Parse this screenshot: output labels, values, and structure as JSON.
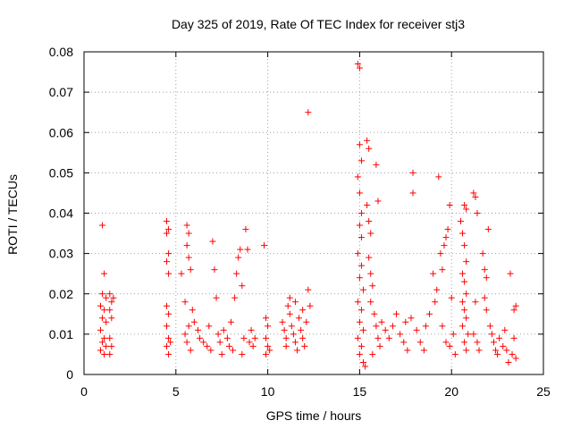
{
  "chart_data": {
    "type": "scatter",
    "title": "Day 325 of 2019, Rate Of TEC Index for receiver stj3",
    "xlabel": "GPS time / hours",
    "ylabel": "ROTI / TECUs",
    "xlim": [
      0,
      25
    ],
    "ylim": [
      0,
      0.08
    ],
    "grid": true,
    "marker": "plus",
    "color": "#ff0000",
    "x_ticks": [
      "0",
      "5",
      "10",
      "15",
      "20",
      "25"
    ],
    "y_ticks": [
      "0",
      "0.01",
      "0.02",
      "0.03",
      "0.04",
      "0.05",
      "0.06",
      "0.07",
      "0.08"
    ],
    "series": [
      {
        "name": "ROTI",
        "points": [
          [
            1.0,
            0.037
          ],
          [
            1.1,
            0.025
          ],
          [
            1.0,
            0.02
          ],
          [
            1.2,
            0.019
          ],
          [
            0.9,
            0.017
          ],
          [
            1.1,
            0.016
          ],
          [
            1.0,
            0.014
          ],
          [
            1.2,
            0.013
          ],
          [
            0.9,
            0.011
          ],
          [
            1.1,
            0.009
          ],
          [
            1.0,
            0.008
          ],
          [
            1.2,
            0.007
          ],
          [
            0.9,
            0.006
          ],
          [
            1.1,
            0.005
          ],
          [
            1.4,
            0.02
          ],
          [
            1.5,
            0.018
          ],
          [
            1.4,
            0.016
          ],
          [
            1.5,
            0.014
          ],
          [
            1.4,
            0.009
          ],
          [
            1.5,
            0.007
          ],
          [
            1.4,
            0.005
          ],
          [
            1.6,
            0.019
          ],
          [
            4.5,
            0.038
          ],
          [
            4.6,
            0.036
          ],
          [
            4.5,
            0.035
          ],
          [
            4.6,
            0.03
          ],
          [
            4.5,
            0.028
          ],
          [
            4.6,
            0.025
          ],
          [
            4.5,
            0.017
          ],
          [
            4.6,
            0.015
          ],
          [
            4.5,
            0.012
          ],
          [
            4.6,
            0.009
          ],
          [
            4.5,
            0.007
          ],
          [
            4.6,
            0.005
          ],
          [
            4.7,
            0.008
          ],
          [
            5.3,
            0.025
          ],
          [
            5.5,
            0.018
          ],
          [
            5.6,
            0.037
          ],
          [
            5.7,
            0.035
          ],
          [
            5.6,
            0.032
          ],
          [
            5.7,
            0.029
          ],
          [
            5.8,
            0.026
          ],
          [
            5.7,
            0.012
          ],
          [
            5.9,
            0.016
          ],
          [
            5.5,
            0.01
          ],
          [
            5.6,
            0.008
          ],
          [
            5.8,
            0.006
          ],
          [
            6.0,
            0.013
          ],
          [
            6.2,
            0.011
          ],
          [
            6.3,
            0.009
          ],
          [
            6.5,
            0.008
          ],
          [
            6.7,
            0.007
          ],
          [
            6.8,
            0.012
          ],
          [
            7.0,
            0.033
          ],
          [
            7.1,
            0.026
          ],
          [
            7.2,
            0.019
          ],
          [
            7.3,
            0.01
          ],
          [
            7.4,
            0.008
          ],
          [
            7.6,
            0.011
          ],
          [
            7.8,
            0.009
          ],
          [
            7.9,
            0.007
          ],
          [
            8.0,
            0.013
          ],
          [
            8.2,
            0.019
          ],
          [
            8.3,
            0.025
          ],
          [
            8.4,
            0.029
          ],
          [
            8.5,
            0.031
          ],
          [
            8.6,
            0.022
          ],
          [
            8.7,
            0.009
          ],
          [
            8.8,
            0.036
          ],
          [
            8.9,
            0.031
          ],
          [
            9.0,
            0.008
          ],
          [
            9.1,
            0.011
          ],
          [
            9.2,
            0.007
          ],
          [
            6.9,
            0.006
          ],
          [
            7.5,
            0.005
          ],
          [
            8.1,
            0.006
          ],
          [
            8.6,
            0.005
          ],
          [
            9.3,
            0.009
          ],
          [
            9.8,
            0.032
          ],
          [
            9.9,
            0.014
          ],
          [
            10.0,
            0.012
          ],
          [
            9.9,
            0.009
          ],
          [
            10.0,
            0.007
          ],
          [
            9.9,
            0.005
          ],
          [
            10.1,
            0.006
          ],
          [
            10.8,
            0.013
          ],
          [
            10.9,
            0.011
          ],
          [
            11.0,
            0.009
          ],
          [
            11.1,
            0.017
          ],
          [
            11.2,
            0.015
          ],
          [
            11.0,
            0.007
          ],
          [
            11.3,
            0.012
          ],
          [
            11.4,
            0.01
          ],
          [
            11.5,
            0.008
          ],
          [
            11.6,
            0.006
          ],
          [
            11.7,
            0.014
          ],
          [
            11.8,
            0.011
          ],
          [
            11.9,
            0.009
          ],
          [
            12.0,
            0.007
          ],
          [
            12.1,
            0.013
          ],
          [
            12.2,
            0.021
          ],
          [
            12.3,
            0.017
          ],
          [
            11.2,
            0.019
          ],
          [
            11.5,
            0.018
          ],
          [
            11.9,
            0.016
          ],
          [
            12.2,
            0.065
          ],
          [
            14.9,
            0.077
          ],
          [
            15.0,
            0.076
          ],
          [
            15.0,
            0.057
          ],
          [
            15.1,
            0.053
          ],
          [
            14.9,
            0.049
          ],
          [
            15.0,
            0.045
          ],
          [
            15.1,
            0.04
          ],
          [
            15.0,
            0.037
          ],
          [
            15.1,
            0.034
          ],
          [
            14.9,
            0.03
          ],
          [
            15.1,
            0.027
          ],
          [
            15.0,
            0.024
          ],
          [
            15.2,
            0.021
          ],
          [
            14.9,
            0.018
          ],
          [
            15.1,
            0.016
          ],
          [
            15.0,
            0.013
          ],
          [
            15.2,
            0.011
          ],
          [
            14.9,
            0.009
          ],
          [
            15.1,
            0.007
          ],
          [
            15.0,
            0.005
          ],
          [
            15.2,
            0.003
          ],
          [
            15.3,
            0.002
          ],
          [
            15.4,
            0.058
          ],
          [
            15.5,
            0.056
          ],
          [
            15.4,
            0.042
          ],
          [
            15.5,
            0.038
          ],
          [
            15.6,
            0.035
          ],
          [
            15.5,
            0.029
          ],
          [
            15.6,
            0.025
          ],
          [
            15.7,
            0.022
          ],
          [
            15.6,
            0.018
          ],
          [
            15.8,
            0.015
          ],
          [
            15.9,
            0.052
          ],
          [
            16.0,
            0.043
          ],
          [
            15.9,
            0.012
          ],
          [
            16.0,
            0.009
          ],
          [
            16.1,
            0.007
          ],
          [
            15.7,
            0.005
          ],
          [
            16.2,
            0.013
          ],
          [
            16.4,
            0.011
          ],
          [
            16.6,
            0.009
          ],
          [
            16.8,
            0.012
          ],
          [
            17.0,
            0.015
          ],
          [
            17.2,
            0.01
          ],
          [
            17.4,
            0.008
          ],
          [
            17.6,
            0.006
          ],
          [
            17.8,
            0.014
          ],
          [
            17.9,
            0.05
          ],
          [
            17.9,
            0.045
          ],
          [
            18.1,
            0.011
          ],
          [
            18.3,
            0.008
          ],
          [
            18.5,
            0.006
          ],
          [
            17.5,
            0.013
          ],
          [
            18.6,
            0.012
          ],
          [
            18.8,
            0.015
          ],
          [
            19.0,
            0.025
          ],
          [
            19.1,
            0.018
          ],
          [
            19.2,
            0.021
          ],
          [
            19.3,
            0.049
          ],
          [
            19.4,
            0.03
          ],
          [
            19.5,
            0.026
          ],
          [
            19.6,
            0.032
          ],
          [
            19.7,
            0.034
          ],
          [
            19.8,
            0.036
          ],
          [
            19.9,
            0.042
          ],
          [
            20.0,
            0.019
          ],
          [
            19.5,
            0.012
          ],
          [
            19.7,
            0.008
          ],
          [
            19.9,
            0.007
          ],
          [
            20.1,
            0.01
          ],
          [
            20.2,
            0.005
          ],
          [
            20.5,
            0.038
          ],
          [
            20.7,
            0.042
          ],
          [
            20.8,
            0.041
          ],
          [
            20.6,
            0.035
          ],
          [
            20.7,
            0.032
          ],
          [
            20.8,
            0.028
          ],
          [
            20.6,
            0.025
          ],
          [
            20.7,
            0.023
          ],
          [
            20.8,
            0.02
          ],
          [
            20.6,
            0.018
          ],
          [
            20.7,
            0.016
          ],
          [
            20.8,
            0.014
          ],
          [
            20.6,
            0.012
          ],
          [
            20.9,
            0.01
          ],
          [
            20.7,
            0.008
          ],
          [
            20.8,
            0.006
          ],
          [
            21.2,
            0.045
          ],
          [
            21.3,
            0.044
          ],
          [
            21.4,
            0.04
          ],
          [
            21.3,
            0.018
          ],
          [
            21.2,
            0.01
          ],
          [
            21.4,
            0.008
          ],
          [
            21.5,
            0.006
          ],
          [
            21.7,
            0.03
          ],
          [
            21.8,
            0.026
          ],
          [
            21.9,
            0.024
          ],
          [
            21.8,
            0.019
          ],
          [
            21.9,
            0.016
          ],
          [
            22.0,
            0.036
          ],
          [
            22.1,
            0.012
          ],
          [
            22.2,
            0.01
          ],
          [
            22.3,
            0.008
          ],
          [
            22.4,
            0.006
          ],
          [
            22.5,
            0.005
          ],
          [
            22.6,
            0.009
          ],
          [
            22.8,
            0.007
          ],
          [
            23.0,
            0.006
          ],
          [
            23.2,
            0.025
          ],
          [
            23.3,
            0.005
          ],
          [
            23.4,
            0.009
          ],
          [
            23.5,
            0.017
          ],
          [
            23.4,
            0.016
          ],
          [
            23.5,
            0.004
          ],
          [
            23.1,
            0.003
          ],
          [
            22.9,
            0.011
          ]
        ]
      }
    ]
  }
}
